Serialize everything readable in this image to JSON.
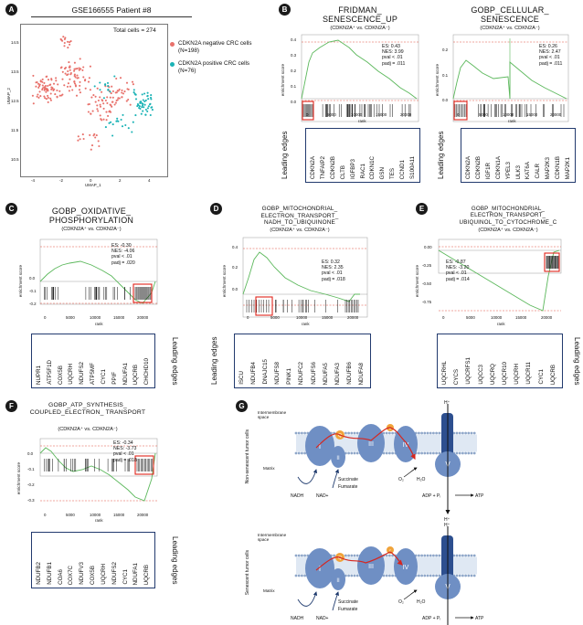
{
  "panelA": {
    "letter": "A",
    "title": "GSE166555 Patient #8",
    "total": "Total cells = 274",
    "legend": [
      {
        "label": "CDKN2A negative CRC cells",
        "n": "(N=198)",
        "color": "#e8716b"
      },
      {
        "label": "CDKN2A positive CRC cells",
        "n": "(N=76)",
        "color": "#1bb3b6"
      }
    ],
    "xlabel": "UMAP_1",
    "ylabel": "UMAP_2",
    "xticks": [
      "-4",
      "-2",
      "0",
      "2",
      "4"
    ],
    "yticks": [
      "10.5",
      "11.5",
      "12.5",
      "13.5",
      "14.5"
    ]
  },
  "common": {
    "ylabel": "enrichment score",
    "xlabel": "rank",
    "subtitle": "(CDKN2A⁺ vs. CDKN2A⁻)",
    "leading": "Leading edges"
  },
  "panelB1": {
    "letter": "B",
    "title": "FRIDMAN_ SENESCENCE_UP",
    "stats": [
      "ES: 0.43",
      "NES: 3.99",
      "pval < .01",
      "padj = .011"
    ],
    "yticks": [
      "0.4",
      "0.3",
      "0.2",
      "0.1",
      "0.0"
    ],
    "xticks": [
      "0",
      "5000",
      "10000",
      "15000",
      "20000"
    ],
    "genes": [
      "CDKN2A",
      "TNFAIP2",
      "CDKN2B",
      "CLTB",
      "IGFBP3",
      "RAC1",
      "CDKN1C",
      "GSN",
      "TES",
      "CCND1",
      "S100A11"
    ]
  },
  "panelB2": {
    "title": "GOBP_CELLULAR_ SENESCENCE",
    "stats": [
      "ES: 0.26",
      "NES: 2.47",
      "pval < .01",
      "padj = .011"
    ],
    "yticks": [
      "0.2",
      "0.1",
      "0.0"
    ],
    "xticks": [
      "0",
      "5000",
      "10000",
      "15000",
      "20000"
    ],
    "genes": [
      "CDKN2A",
      "CDKN2B",
      "IGF1R",
      "CDKN1A",
      "YPEL3",
      "ULK3",
      "KAT6A",
      "CALR",
      "MAP2K3",
      "CDKN1B",
      "MAP2K1"
    ]
  },
  "panelC": {
    "letter": "C",
    "title": "GOBP_OXIDATIVE_ PHOSPHORYLATION",
    "stats": [
      "ES: -0.30",
      "NES: -4.06",
      "pval < .01",
      "padj = .020"
    ],
    "yticks": [
      "0.0",
      "-0.1",
      "-0.2"
    ],
    "xticks": [
      "0",
      "5000",
      "10000",
      "15000",
      "20000"
    ],
    "genes": [
      "NUPR1",
      "ATP5F1D",
      "COX5B",
      "UQCRH",
      "NDUFS2",
      "ATP5MF",
      "CYC1",
      "PPIF",
      "NDUFA1",
      "UQCRB",
      "CHCHD10"
    ]
  },
  "panelD": {
    "letter": "D",
    "title": "GOBP_MITOCHONDRIAL_ ELECTRON_TRANSPORT_ NADH_TO_UBIQUINONE",
    "stats": [
      "ES: 0.32",
      "NES: 2.35",
      "pval < .01",
      "padj = .018"
    ],
    "yticks": [
      "0.4",
      "0.2",
      "0.0"
    ],
    "xticks": [
      "0",
      "5000",
      "10000",
      "15000",
      "20000"
    ],
    "genes": [
      "ISCU",
      "NDUFB4",
      "DNAJC15",
      "NDUFS8",
      "PINK1",
      "NDUFC2",
      "NDUFS6",
      "NDUFA5",
      "NDUFA3",
      "NDUFB6",
      "NDUFA8"
    ]
  },
  "panelE": {
    "letter": "E",
    "title": "GOBP_MITOCHONDRIAL_ ELECTRON_TRANSPORT_ UBIQUINOL_TO_CYTOCHROME_C",
    "stats": [
      "ES: -0.87",
      "NES: -3.20",
      "pval < .01",
      "padj = .014"
    ],
    "yticks": [
      "0.00",
      "-0.25",
      "-0.50",
      "-0.75"
    ],
    "xticks": [
      "0",
      "5000",
      "10000",
      "15000",
      "20000"
    ],
    "genes": [
      "UQCRHL",
      "CYCS",
      "UQCRFS1",
      "UQCC3",
      "UQCRQ",
      "UQCR10",
      "UQCRH",
      "UQCR11",
      "CYC1",
      "UQCRB"
    ]
  },
  "panelF": {
    "letter": "F",
    "title": "GOBP_ATP_SYNTHESIS_ COUPLED_ELECTRON_ TRANSPORT",
    "stats": [
      "ES: -0.34",
      "NES: -3.73",
      "pval < .01",
      "padj = .018"
    ],
    "yticks": [
      "0.0",
      "-0.1",
      "-0.2",
      "-0.3"
    ],
    "xticks": [
      "0",
      "5000",
      "10000",
      "15000",
      "20000"
    ],
    "genes": [
      "NDUFB2",
      "NDUFB1",
      "COA6",
      "COX7C",
      "NDUFV3",
      "COX5B",
      "UQCRH",
      "NDUFS2",
      "CYC1",
      "NDUFA1",
      "UQCRB"
    ]
  },
  "panelG": {
    "letter": "G",
    "top": {
      "side": "Non-senescent tumor cells",
      "space": "Intermembrane space",
      "matrix": "Matrix",
      "complexes": [
        "I",
        "II",
        "III",
        "IV",
        "V"
      ],
      "q": "Q",
      "c": "c",
      "nadh": "NADH",
      "nad": "NAD+",
      "succ": "Succinate",
      "fum": "Fumarate",
      "o2": "O₂",
      "h2o": "H₂O",
      "adp": "ADP + Pᵢ",
      "atp": "ATP",
      "h": "H⁺"
    },
    "bottom": {
      "side": "Senescent tumor cells",
      "space": "Intermembrane space",
      "matrix": "Matrix"
    }
  }
}
